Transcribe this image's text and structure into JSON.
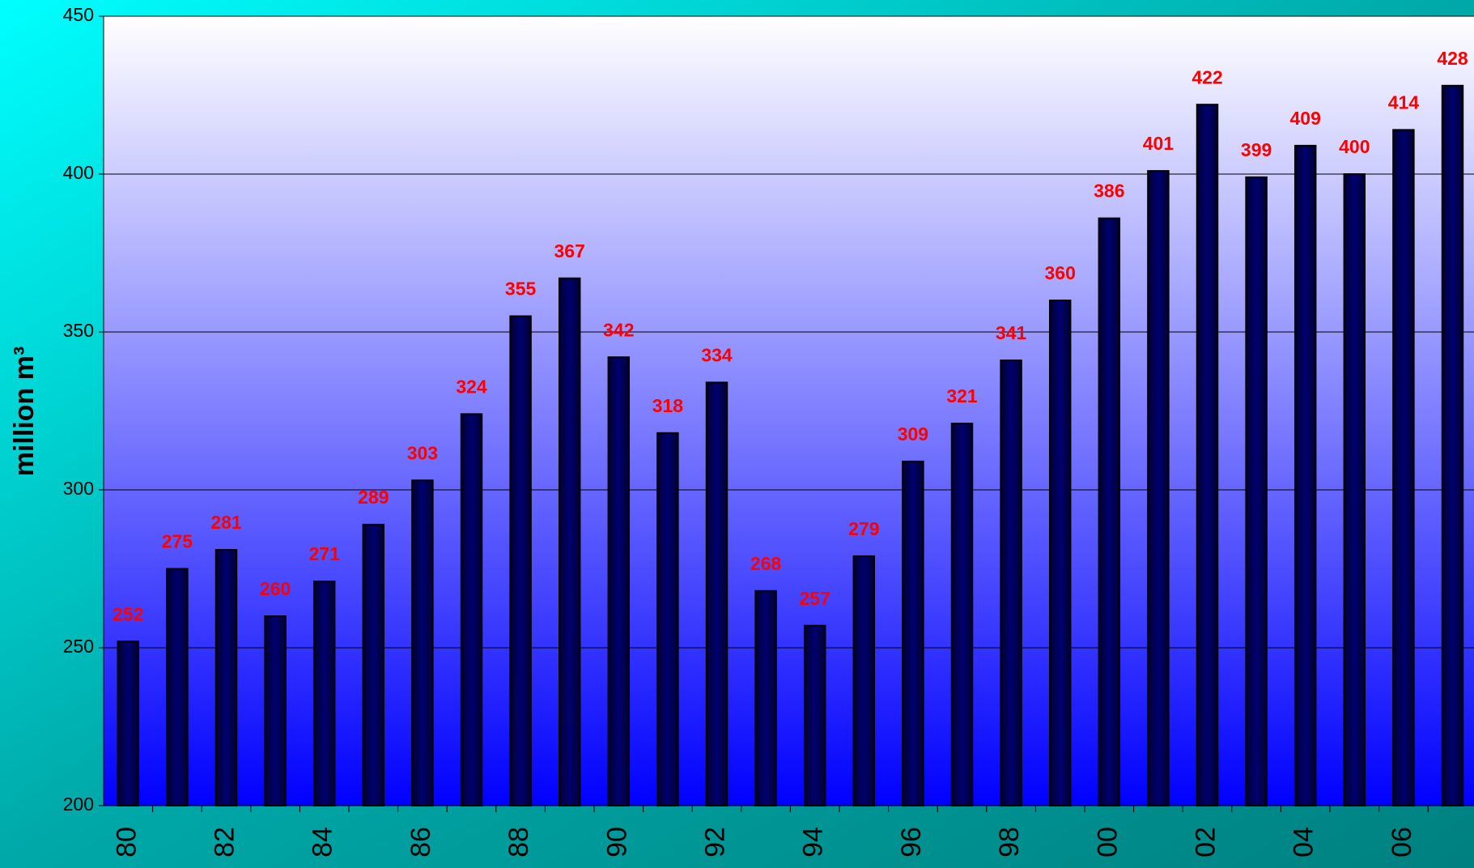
{
  "chart_data": {
    "type": "bar",
    "y_label": "million m³",
    "categories": [
      "80",
      null,
      "82",
      null,
      "84",
      null,
      "86",
      null,
      "88",
      null,
      "90",
      null,
      "92",
      null,
      "94",
      null,
      "96",
      null,
      "98",
      null,
      "00",
      null,
      "02",
      null,
      "04",
      null,
      "06",
      null
    ],
    "values": [
      252,
      275,
      281,
      260,
      271,
      289,
      303,
      324,
      355,
      367,
      342,
      318,
      334,
      268,
      257,
      279,
      309,
      321,
      341,
      360,
      386,
      401,
      422,
      399,
      409,
      400,
      414,
      428
    ],
    "color": "#000060",
    "ylim": [
      200,
      450
    ],
    "yticks": [
      200,
      250,
      300,
      350,
      400,
      450
    ],
    "grid": true
  }
}
